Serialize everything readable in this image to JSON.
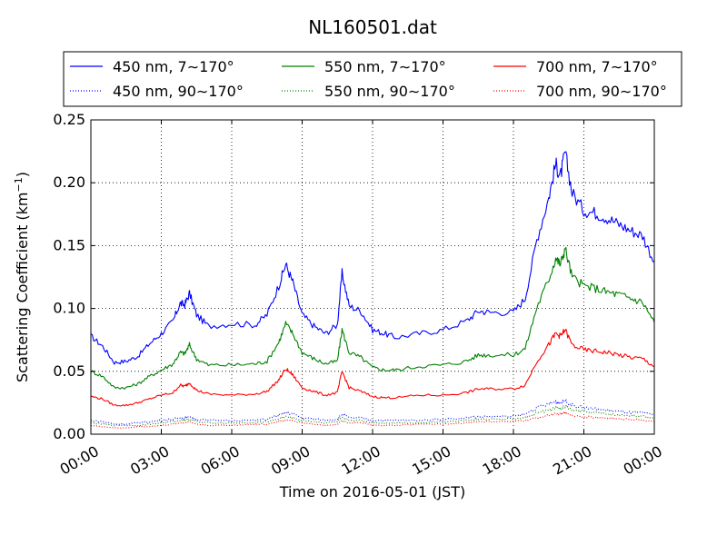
{
  "chart_data": {
    "type": "line",
    "title": "NL160501.dat",
    "xlabel": "Time on 2016-05-01 (JST)",
    "ylabel_main": "Scattering Coefficient (km",
    "ylabel_sup": "−1",
    "ylabel_close": ")",
    "xlim": [
      "00:00",
      "24:00"
    ],
    "ylim": [
      0,
      0.25
    ],
    "grid": true,
    "legend_placement": "top",
    "x_ticks": [
      {
        "hour": 0,
        "label": "00:00"
      },
      {
        "hour": 3,
        "label": "03:00"
      },
      {
        "hour": 6,
        "label": "06:00"
      },
      {
        "hour": 9,
        "label": "09:00"
      },
      {
        "hour": 12,
        "label": "12:00"
      },
      {
        "hour": 15,
        "label": "15:00"
      },
      {
        "hour": 18,
        "label": "18:00"
      },
      {
        "hour": 21,
        "label": "21:00"
      },
      {
        "hour": 24,
        "label": "00:00"
      }
    ],
    "y_ticks": [
      {
        "value": 0.0,
        "label": "0.00"
      },
      {
        "value": 0.05,
        "label": "0.05"
      },
      {
        "value": 0.1,
        "label": "0.10"
      },
      {
        "value": 0.15,
        "label": "0.15"
      },
      {
        "value": 0.2,
        "label": "0.20"
      },
      {
        "value": 0.25,
        "label": "0.25"
      }
    ],
    "x_hours": [
      0,
      0.5,
      1,
      1.5,
      2,
      2.5,
      3,
      3.5,
      3.8,
      4,
      4.2,
      4.5,
      5,
      6,
      7,
      7.5,
      8,
      8.3,
      8.6,
      9,
      9.5,
      10,
      10.5,
      10.7,
      11,
      11.5,
      12,
      12.5,
      13,
      14,
      15,
      16,
      16.5,
      17,
      18,
      18.5,
      19,
      19.5,
      19.8,
      20,
      20.2,
      20.5,
      21,
      21.5,
      22,
      22.5,
      23,
      23.5,
      24
    ],
    "series": [
      {
        "name": "450 nm, 7∼170°",
        "color": "#0000ff",
        "style": "solid",
        "values": [
          0.078,
          0.07,
          0.057,
          0.058,
          0.062,
          0.072,
          0.08,
          0.09,
          0.104,
          0.103,
          0.112,
          0.095,
          0.086,
          0.088,
          0.087,
          0.095,
          0.118,
          0.135,
          0.121,
          0.095,
          0.086,
          0.08,
          0.087,
          0.128,
          0.102,
          0.098,
          0.083,
          0.08,
          0.077,
          0.08,
          0.083,
          0.09,
          0.098,
          0.097,
          0.097,
          0.108,
          0.155,
          0.188,
          0.215,
          0.205,
          0.224,
          0.192,
          0.178,
          0.176,
          0.172,
          0.167,
          0.162,
          0.158,
          0.137
        ]
      },
      {
        "name": "550 nm, 7∼170°",
        "color": "#008000",
        "style": "solid",
        "values": [
          0.05,
          0.046,
          0.037,
          0.037,
          0.04,
          0.046,
          0.051,
          0.056,
          0.065,
          0.064,
          0.071,
          0.06,
          0.055,
          0.055,
          0.056,
          0.058,
          0.073,
          0.088,
          0.08,
          0.065,
          0.06,
          0.056,
          0.058,
          0.083,
          0.065,
          0.061,
          0.053,
          0.051,
          0.051,
          0.054,
          0.055,
          0.058,
          0.063,
          0.063,
          0.063,
          0.068,
          0.101,
          0.123,
          0.14,
          0.135,
          0.148,
          0.125,
          0.118,
          0.116,
          0.113,
          0.111,
          0.108,
          0.105,
          0.089
        ]
      },
      {
        "name": "700 nm, 7∼170°",
        "color": "#ff0000",
        "style": "solid",
        "values": [
          0.03,
          0.028,
          0.023,
          0.023,
          0.025,
          0.028,
          0.031,
          0.033,
          0.039,
          0.038,
          0.041,
          0.035,
          0.032,
          0.031,
          0.032,
          0.034,
          0.043,
          0.052,
          0.047,
          0.037,
          0.034,
          0.031,
          0.033,
          0.05,
          0.037,
          0.034,
          0.03,
          0.029,
          0.029,
          0.031,
          0.031,
          0.033,
          0.036,
          0.036,
          0.036,
          0.039,
          0.058,
          0.071,
          0.08,
          0.078,
          0.083,
          0.071,
          0.067,
          0.066,
          0.065,
          0.063,
          0.061,
          0.06,
          0.054
        ]
      },
      {
        "name": "450 nm, 90∼170°",
        "color": "#0000ff",
        "style": "dotted",
        "values": [
          0.011,
          0.01,
          0.008,
          0.008,
          0.009,
          0.01,
          0.011,
          0.012,
          0.013,
          0.013,
          0.014,
          0.012,
          0.011,
          0.011,
          0.011,
          0.012,
          0.015,
          0.017,
          0.016,
          0.013,
          0.012,
          0.011,
          0.012,
          0.016,
          0.013,
          0.013,
          0.011,
          0.011,
          0.011,
          0.011,
          0.012,
          0.013,
          0.014,
          0.014,
          0.014,
          0.016,
          0.021,
          0.024,
          0.026,
          0.025,
          0.027,
          0.023,
          0.021,
          0.02,
          0.019,
          0.018,
          0.017,
          0.017,
          0.015
        ]
      },
      {
        "name": "550 nm, 90∼170°",
        "color": "#008000",
        "style": "dotted",
        "values": [
          0.009,
          0.008,
          0.007,
          0.007,
          0.007,
          0.008,
          0.009,
          0.01,
          0.011,
          0.011,
          0.012,
          0.01,
          0.009,
          0.009,
          0.009,
          0.01,
          0.012,
          0.014,
          0.013,
          0.011,
          0.01,
          0.009,
          0.01,
          0.013,
          0.011,
          0.011,
          0.009,
          0.009,
          0.009,
          0.009,
          0.01,
          0.011,
          0.012,
          0.012,
          0.012,
          0.013,
          0.017,
          0.019,
          0.021,
          0.02,
          0.022,
          0.019,
          0.018,
          0.017,
          0.016,
          0.015,
          0.015,
          0.014,
          0.013
        ]
      },
      {
        "name": "700 nm, 90∼170°",
        "color": "#ff0000",
        "style": "dotted",
        "values": [
          0.007,
          0.006,
          0.005,
          0.005,
          0.006,
          0.006,
          0.007,
          0.008,
          0.009,
          0.009,
          0.01,
          0.008,
          0.007,
          0.007,
          0.008,
          0.008,
          0.01,
          0.011,
          0.011,
          0.009,
          0.008,
          0.007,
          0.008,
          0.011,
          0.009,
          0.009,
          0.007,
          0.007,
          0.007,
          0.008,
          0.008,
          0.009,
          0.01,
          0.01,
          0.01,
          0.011,
          0.013,
          0.015,
          0.016,
          0.016,
          0.017,
          0.015,
          0.014,
          0.013,
          0.013,
          0.012,
          0.012,
          0.011,
          0.01
        ]
      }
    ]
  }
}
